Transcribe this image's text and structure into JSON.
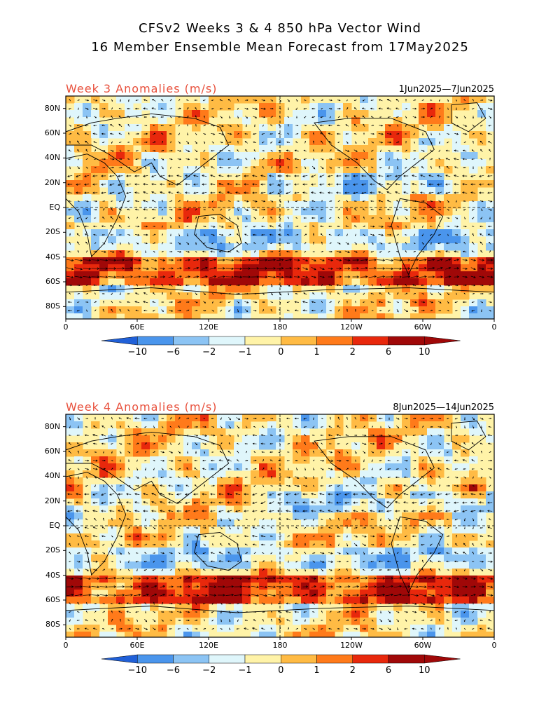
{
  "header": {
    "title_line1": "CFSv2 Weeks 3 & 4 850 hPa Vector Wind",
    "title_line2": "16 Member Ensemble Mean Forecast from 17May2025"
  },
  "panels": [
    {
      "label": "Week 3 Anomalies (m/s)",
      "dates": "1Jun2025—7Jun2025"
    },
    {
      "label": "Week 4 Anomalies (m/s)",
      "dates": "8Jun2025—14Jun2025"
    }
  ],
  "axes": {
    "lat_labels": [
      "80N",
      "60N",
      "40N",
      "20N",
      "EQ",
      "20S",
      "40S",
      "60S",
      "80S"
    ],
    "lon_labels": [
      "0",
      "60E",
      "120E",
      "180",
      "120W",
      "60W",
      "0"
    ]
  },
  "colorbar": {
    "labels": [
      "−10",
      "−6",
      "−2",
      "−1",
      "0",
      "1",
      "2",
      "6",
      "10"
    ],
    "colors": [
      "#2060d8",
      "#4a95ec",
      "#8cc4f4",
      "#dff6fb",
      "#fff3a8",
      "#ffbb44",
      "#ff7a1a",
      "#e8280c",
      "#a00808"
    ]
  },
  "colors": {
    "title_red": "#e8503c",
    "coast": "#000000",
    "vectors": "#000000"
  }
}
